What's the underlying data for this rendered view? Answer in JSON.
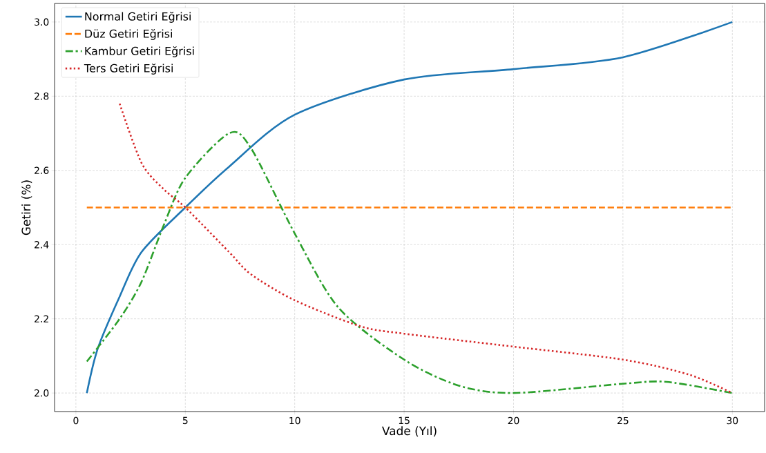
{
  "chart_data": {
    "type": "line",
    "xlabel": "Vade (Yıl)",
    "ylabel": "Getiri (%)",
    "xlim": [
      -0.975,
      31.475
    ],
    "ylim": [
      1.95,
      3.05
    ],
    "xticks": [
      0,
      5,
      10,
      15,
      20,
      25,
      30
    ],
    "yticks": [
      {
        "value": 2.0,
        "label": "2.0"
      },
      {
        "value": 2.2,
        "label": "2.2"
      },
      {
        "value": 2.4,
        "label": "2.4"
      },
      {
        "value": 2.6,
        "label": "2.6"
      },
      {
        "value": 2.8,
        "label": "2.8"
      },
      {
        "value": 3.0,
        "label": "3.0"
      }
    ],
    "grid": true,
    "legend": "top left",
    "marker": "none",
    "series": [
      {
        "name": "Normal Getiri Eğrisi",
        "color": "#1f77b4",
        "line_style": "solid",
        "x": [
          0.5,
          1,
          2,
          3,
          5,
          7,
          10,
          15,
          20,
          25,
          30
        ],
        "values": [
          2.0,
          2.12,
          2.26,
          2.38,
          2.5,
          2.61,
          2.75,
          2.845,
          2.873,
          2.905,
          3.0
        ]
      },
      {
        "name": "Düz Getiri Eğrisi",
        "color": "#ff7f0e",
        "line_style": "dashed",
        "x": [
          0.5,
          30
        ],
        "values": [
          2.5,
          2.5
        ]
      },
      {
        "name": "Kambur Getiri Eğrisi",
        "color": "#2ca02c",
        "line_style": "dashdot",
        "x": [
          0.5,
          2,
          3,
          4,
          5,
          7,
          8,
          10,
          12,
          15,
          17.5,
          20,
          25,
          27,
          30
        ],
        "values": [
          2.085,
          2.2,
          2.3,
          2.45,
          2.58,
          2.7,
          2.66,
          2.43,
          2.23,
          2.09,
          2.02,
          2.0,
          2.025,
          2.03,
          2.0
        ]
      },
      {
        "name": "Ters Getiri Eğrisi",
        "color": "#d62728",
        "line_style": "dotted",
        "x": [
          2,
          3,
          4,
          5,
          7,
          8,
          10,
          13,
          15,
          20,
          25,
          28,
          30
        ],
        "values": [
          2.78,
          2.62,
          2.55,
          2.5,
          2.38,
          2.32,
          2.25,
          2.18,
          2.16,
          2.125,
          2.09,
          2.05,
          2.0
        ]
      }
    ]
  }
}
